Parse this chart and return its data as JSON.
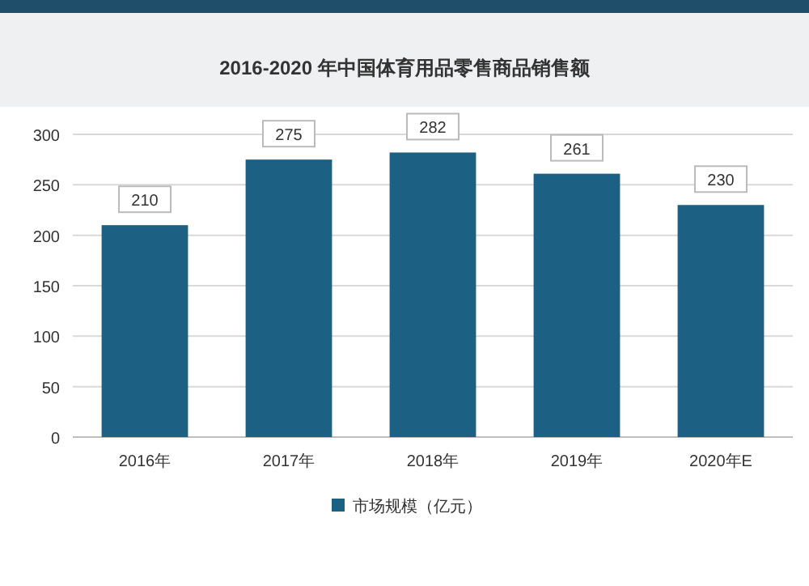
{
  "chart_data": {
    "type": "bar",
    "title": "2016-2020 年中国体育用品零售商品销售额",
    "categories": [
      "2016年",
      "2017年",
      "2018年",
      "2019年",
      "2020年E"
    ],
    "series": [
      {
        "name": "市场规模（亿元）",
        "color": "#1c6183",
        "values": [
          210,
          275,
          282,
          261,
          230
        ]
      }
    ],
    "ylim": [
      0,
      300
    ],
    "yticks": [
      0,
      50,
      100,
      150,
      200,
      250,
      300
    ],
    "grid": "y",
    "data_labels": true,
    "legend": "bottom"
  }
}
